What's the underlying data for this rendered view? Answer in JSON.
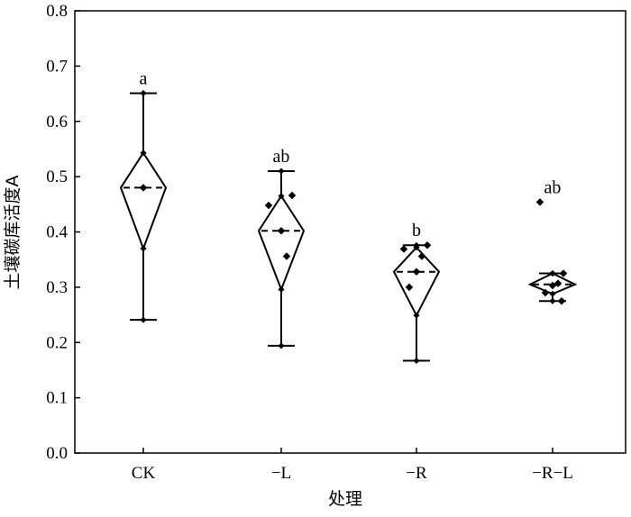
{
  "chart_data": {
    "type": "box",
    "xlabel": "处理",
    "ylabel": "土壤碳库活度A",
    "ylim": [
      0.0,
      0.8
    ],
    "yticks": [
      "0.0",
      "0.1",
      "0.2",
      "0.3",
      "0.4",
      "0.5",
      "0.6",
      "0.7",
      "0.8"
    ],
    "categories": [
      "CK",
      "−L",
      "−R",
      "−R−L"
    ],
    "groups": [
      {
        "category": "CK",
        "letter": "a",
        "whisker_low": 0.241,
        "whisker_high": 0.651,
        "q1": 0.37,
        "q3": 0.543,
        "median": 0.48,
        "mean": 0.48,
        "points": []
      },
      {
        "category": "−L",
        "letter": "ab",
        "whisker_low": 0.194,
        "whisker_high": 0.51,
        "q1": 0.296,
        "q3": 0.465,
        "median": 0.402,
        "mean": 0.402,
        "points": [
          0.448,
          0.466,
          0.356
        ]
      },
      {
        "category": "−R",
        "letter": "b",
        "whisker_low": 0.167,
        "whisker_high": 0.376,
        "q1": 0.249,
        "q3": 0.372,
        "median": 0.328,
        "mean": 0.328,
        "points": [
          0.369,
          0.376,
          0.356,
          0.3
        ]
      },
      {
        "category": "−R−L",
        "letter": "ab",
        "whisker_low": 0.275,
        "whisker_high": 0.325,
        "q1": 0.288,
        "q3": 0.325,
        "median": 0.305,
        "mean": 0.303,
        "points": [
          0.454,
          0.325,
          0.307,
          0.29,
          0.275
        ]
      }
    ]
  }
}
